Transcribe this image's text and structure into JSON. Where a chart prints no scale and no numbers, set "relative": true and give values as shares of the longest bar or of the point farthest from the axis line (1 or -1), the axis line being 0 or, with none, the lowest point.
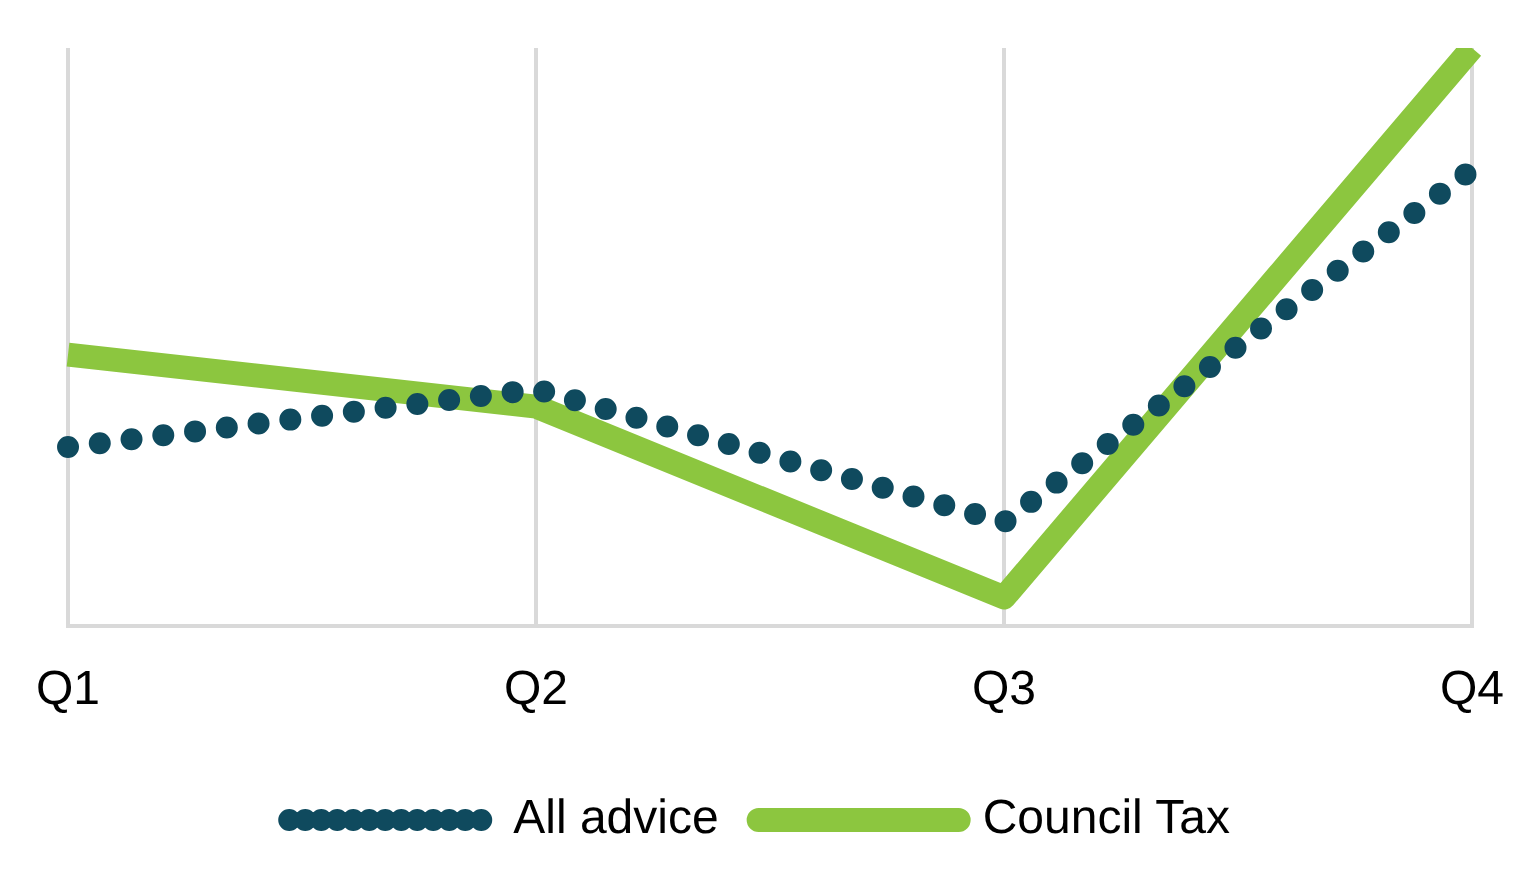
{
  "chart_data": {
    "type": "line",
    "relative": true,
    "categories": [
      "Q1",
      "Q2",
      "Q3",
      "Q4"
    ],
    "series": [
      {
        "name": "All advice",
        "color": "#0f4a5e",
        "line_style": "dotted",
        "values": [
          0.31,
          0.41,
          0.18,
          0.79
        ]
      },
      {
        "name": "Council Tax",
        "color": "#8cc63f",
        "line_style": "solid",
        "values": [
          0.47,
          0.38,
          0.05,
          1
        ]
      }
    ],
    "grid": "x",
    "legend": "bottom",
    "marker": "none"
  }
}
